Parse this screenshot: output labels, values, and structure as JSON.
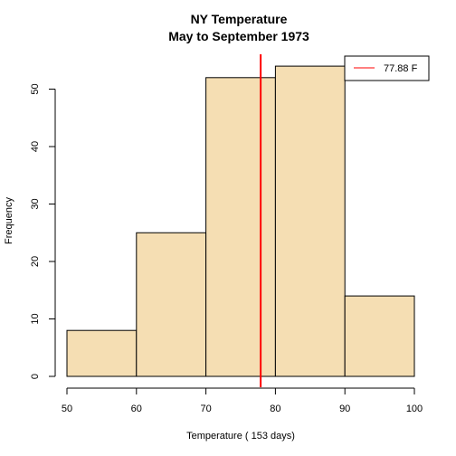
{
  "chart_data": {
    "type": "histogram",
    "title": "NY Temperature",
    "subtitle": "May to September 1973",
    "xlabel": "Temperature ( 153  days)",
    "ylabel": "Frequency",
    "bins": [
      {
        "start": 50,
        "end": 60,
        "count": 8
      },
      {
        "start": 60,
        "end": 70,
        "count": 25
      },
      {
        "start": 70,
        "end": 80,
        "count": 52
      },
      {
        "start": 80,
        "end": 90,
        "count": 54
      },
      {
        "start": 90,
        "end": 100,
        "count": 14
      }
    ],
    "xlim": [
      50,
      100
    ],
    "ylim": [
      0,
      54
    ],
    "x_ticks": [
      50,
      60,
      70,
      80,
      90,
      100
    ],
    "y_ticks": [
      0,
      10,
      20,
      30,
      40,
      50
    ],
    "bar_fill": "#F5DEB3",
    "bar_stroke": "#000000",
    "mean_line": {
      "x": 77.88,
      "color": "#FF0000",
      "label": "77.88  F"
    },
    "legend": {
      "position": "top-right",
      "entries": [
        "77.88  F"
      ]
    },
    "grid": false
  }
}
